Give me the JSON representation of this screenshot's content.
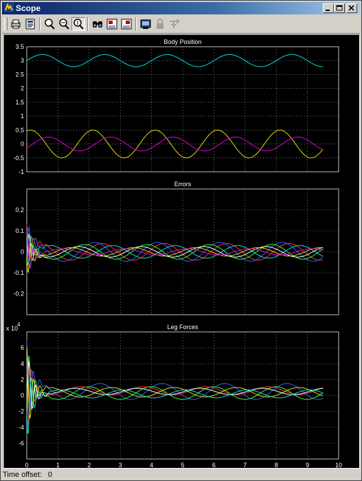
{
  "window": {
    "title": "Scope"
  },
  "toolbar": {
    "buttons": [
      {
        "name": "print-icon"
      },
      {
        "name": "parameters-icon"
      },
      {
        "name": "zoom-icon"
      },
      {
        "name": "zoom-x-icon"
      },
      {
        "name": "zoom-y-icon"
      },
      {
        "name": "autoscale-icon"
      },
      {
        "name": "save-axes-icon"
      },
      {
        "name": "restore-axes-icon"
      },
      {
        "name": "floating-scope-icon"
      },
      {
        "name": "lock-axes-icon"
      },
      {
        "name": "signal-selection-icon"
      }
    ]
  },
  "status": {
    "label": "Time offset:",
    "value": "0"
  },
  "chart_data": [
    {
      "type": "line",
      "title": "Body Position",
      "xlim": [
        0,
        10
      ],
      "ylim": [
        -1,
        3.5
      ],
      "yticks": [
        "3.5",
        "3",
        "2.5",
        "2",
        "1.5",
        "1",
        "0.5",
        "0",
        "-0.5",
        "-1"
      ],
      "xticks": [
        "0",
        "1",
        "2",
        "3",
        "4",
        "5",
        "6",
        "7",
        "8",
        "9",
        "10"
      ],
      "grid": true,
      "series": [
        {
          "color": "#00e0e0",
          "offset": 3.0,
          "amp": 0.22,
          "period": 2.0,
          "phase": 0.0
        },
        {
          "color": "#e0e000",
          "offset": 0.0,
          "amp": 0.5,
          "period": 2.0,
          "phase": 1.2
        },
        {
          "color": "#e000e0",
          "offset": 0.0,
          "amp": 0.25,
          "period": 2.0,
          "phase": -0.6
        }
      ]
    },
    {
      "type": "line",
      "title": "Errors",
      "xlim": [
        0,
        10
      ],
      "ylim": [
        -0.3,
        0.3
      ],
      "yticks": [
        "0.2",
        "0.1",
        "0",
        "-0.1",
        "-0.2"
      ],
      "xticks": [],
      "grid": true,
      "series": [
        {
          "color": "#ff3030",
          "offset": 0.0,
          "amp": 0.04,
          "period": 2.0,
          "phase": 0.3
        },
        {
          "color": "#3060ff",
          "offset": 0.0,
          "amp": 0.045,
          "period": 2.0,
          "phase": 1.0
        },
        {
          "color": "#30ff30",
          "offset": 0.0,
          "amp": 0.035,
          "period": 2.0,
          "phase": 2.0
        },
        {
          "color": "#00e0e0",
          "offset": 0.0,
          "amp": 0.03,
          "period": 2.0,
          "phase": -0.8
        },
        {
          "color": "#ffffff",
          "offset": 0.0,
          "amp": 0.025,
          "period": 2.0,
          "phase": 2.6
        },
        {
          "color": "#e0e000",
          "offset": 0.0,
          "amp": 0.02,
          "period": 2.0,
          "phase": 3.4
        },
        {
          "color": "#e000e0",
          "offset": 0.0,
          "amp": 0.015,
          "period": 2.0,
          "phase": -2.0
        }
      ]
    },
    {
      "type": "line",
      "title": "Leg Forces",
      "multiplier": "x 10",
      "multiplier_exp": "4",
      "xlim": [
        0,
        10
      ],
      "ylim": [
        -8,
        8
      ],
      "yticks": [
        "6",
        "4",
        "2",
        "0",
        "-2",
        "-4",
        "-6"
      ],
      "xticks": [
        "0",
        "1",
        "2",
        "3",
        "4",
        "5",
        "6",
        "7",
        "8",
        "9",
        "10"
      ],
      "grid": true,
      "series": [
        {
          "color": "#3060ff",
          "offset": 0.5,
          "amp": 1.0,
          "period": 2.0,
          "phase": 0.5
        },
        {
          "color": "#30ff30",
          "offset": 0.3,
          "amp": 0.8,
          "period": 2.0,
          "phase": 1.6
        },
        {
          "color": "#ff3030",
          "offset": 0.6,
          "amp": 0.5,
          "period": 2.0,
          "phase": 2.4
        },
        {
          "color": "#e0e000",
          "offset": 0.4,
          "amp": 0.6,
          "period": 2.0,
          "phase": -0.7
        },
        {
          "color": "#ffffff",
          "offset": 0.5,
          "amp": 0.4,
          "period": 2.0,
          "phase": 3.0
        },
        {
          "color": "#00e0e0",
          "offset": 0.2,
          "amp": 0.5,
          "period": 2.0,
          "phase": -1.8
        }
      ]
    }
  ]
}
